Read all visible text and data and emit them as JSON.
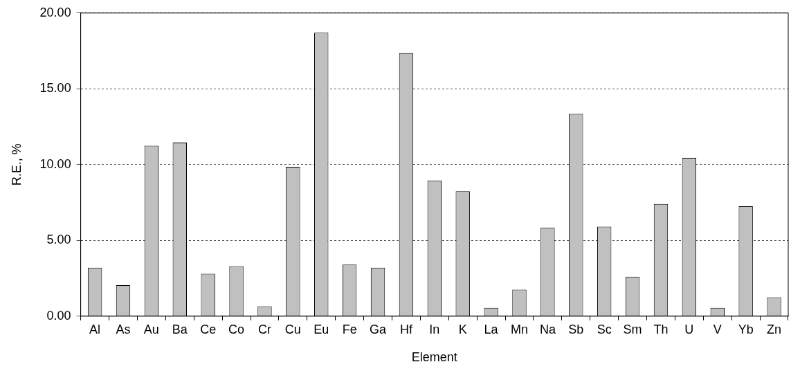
{
  "chart_data": {
    "type": "bar",
    "xlabel": "Element",
    "ylabel": "R.E., %",
    "categories": [
      "Al",
      "As",
      "Au",
      "Ba",
      "Ce",
      "Co",
      "Cr",
      "Cu",
      "Eu",
      "Fe",
      "Ga",
      "Hf",
      "In",
      "K",
      "La",
      "Mn",
      "Na",
      "Sb",
      "Sc",
      "Sm",
      "Th",
      "U",
      "V",
      "Yb",
      "Zn"
    ],
    "values": [
      3.2,
      2.05,
      11.25,
      11.45,
      2.8,
      3.3,
      0.65,
      9.85,
      18.7,
      3.4,
      3.2,
      17.35,
      8.95,
      8.25,
      0.55,
      1.75,
      5.85,
      13.35,
      5.9,
      2.6,
      7.4,
      10.45,
      0.55,
      7.25,
      1.25
    ],
    "color": "#c0c0c0",
    "ylim": [
      0,
      20
    ],
    "yticks": [
      {
        "value": 0,
        "label": "0.00"
      },
      {
        "value": 5,
        "label": "5.00"
      },
      {
        "value": 10,
        "label": "10.00"
      },
      {
        "value": 15,
        "label": "15.00"
      },
      {
        "value": 20,
        "label": "20.00"
      }
    ],
    "grid": "y",
    "legend": false
  }
}
